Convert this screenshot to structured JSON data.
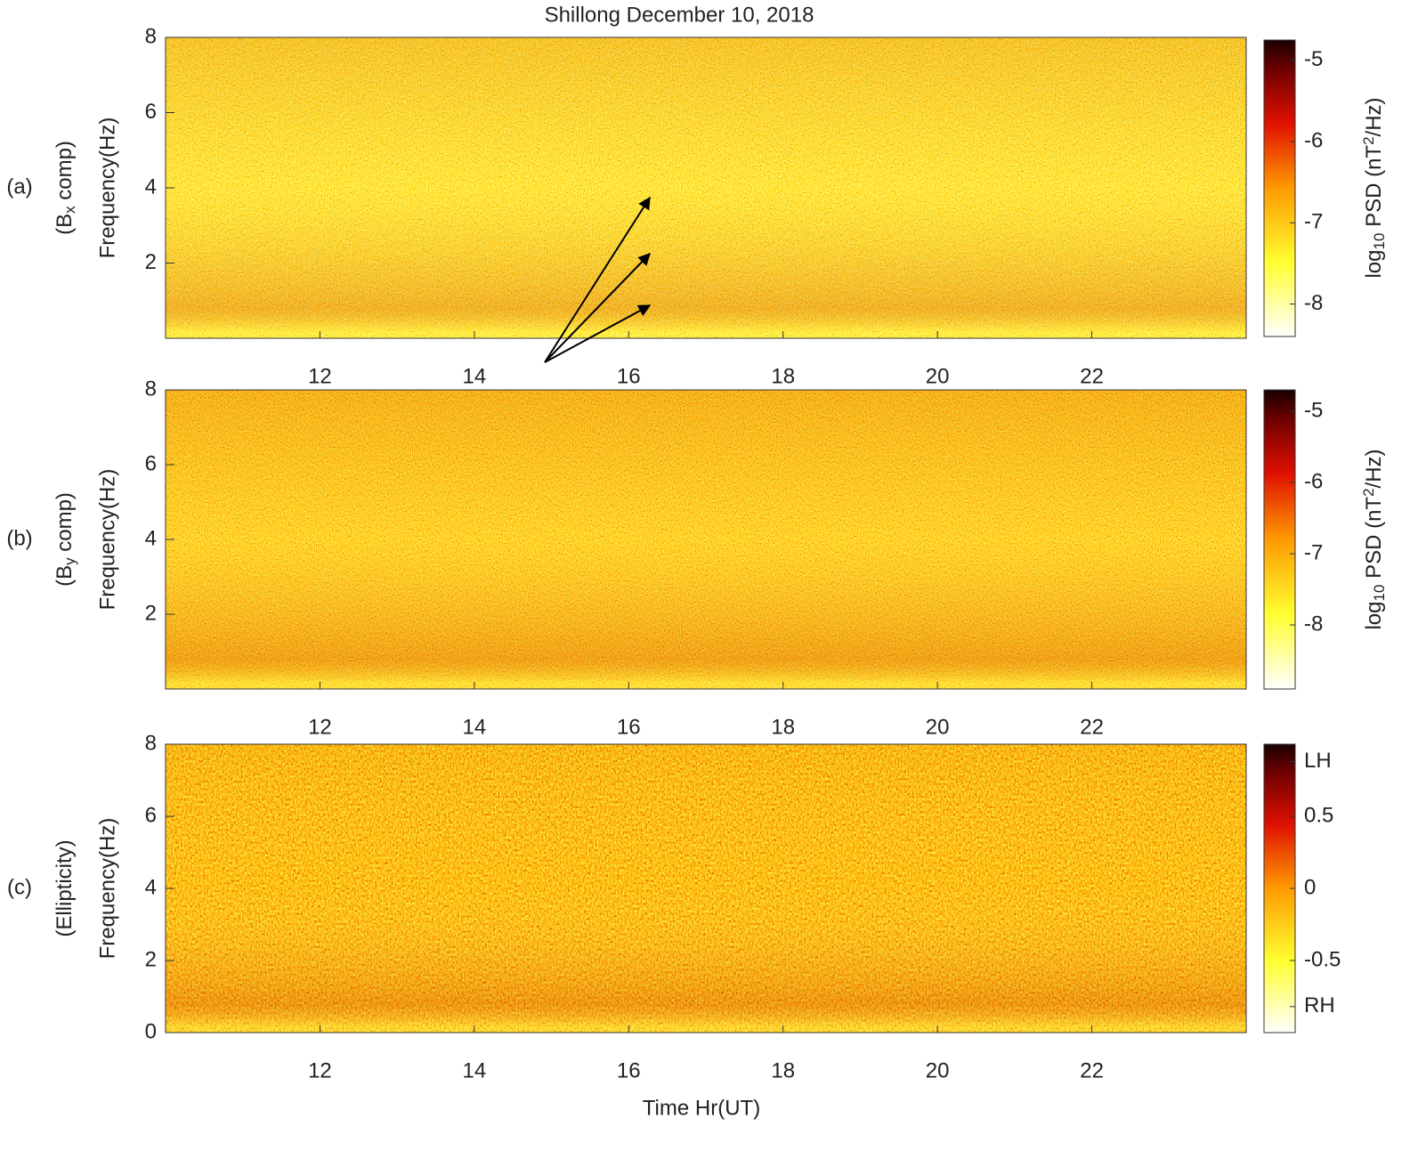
{
  "chart_data": [
    {
      "type": "heatmap",
      "title": "Shillong December 10, 2018",
      "panel_label": "(a)",
      "component_label": {
        "pre": "(B",
        "sub": "x",
        "post": " comp)"
      },
      "ylabel": "Frequency(Hz)",
      "xlim": [
        10,
        24
      ],
      "xticks": [
        12,
        14,
        16,
        18,
        20,
        22
      ],
      "ylim": [
        0,
        8
      ],
      "yticks": [
        2,
        4,
        6,
        8
      ],
      "colorbar": {
        "label": {
          "pre": "log",
          "sub": "10",
          "mid": " PSD (nT",
          "sup": "2",
          "post": "/Hz)"
        },
        "clim": [
          -8.4,
          -4.75
        ],
        "ticks": [
          -8,
          -7,
          -6,
          -5
        ]
      }
    },
    {
      "type": "heatmap",
      "panel_label": "(b)",
      "component_label": {
        "pre": "(B",
        "sub": "y",
        "post": " comp)"
      },
      "ylabel": "Frequency(Hz)",
      "xlim": [
        10,
        24
      ],
      "xticks": [
        12,
        14,
        16,
        18,
        20,
        22
      ],
      "ylim": [
        0,
        8
      ],
      "yticks": [
        2,
        4,
        6,
        8
      ],
      "colorbar": {
        "label": {
          "pre": "log",
          "sub": "10",
          "mid": " PSD (nT",
          "sup": "2",
          "post": "/Hz)"
        },
        "clim": [
          -8.9,
          -4.7
        ],
        "ticks": [
          -8,
          -7,
          -6,
          -5
        ]
      }
    },
    {
      "type": "heatmap",
      "panel_label": "(c)",
      "component_label": {
        "pre": "(Ellipticity)"
      },
      "ylabel": "Frequency(Hz)",
      "xlabel": "Time Hr(UT)",
      "xlim": [
        10,
        24
      ],
      "xticks": [
        12,
        14,
        16,
        18,
        20,
        22
      ],
      "ylim": [
        0,
        8
      ],
      "yticks": [
        0,
        2,
        4,
        6,
        8
      ],
      "colorbar": {
        "clim": [
          -1,
          1
        ],
        "ticks": [
          {
            "value": -0.82,
            "label": "RH"
          },
          -0.5,
          0,
          0.5,
          {
            "value": 0.88,
            "label": "LH"
          }
        ]
      }
    }
  ]
}
